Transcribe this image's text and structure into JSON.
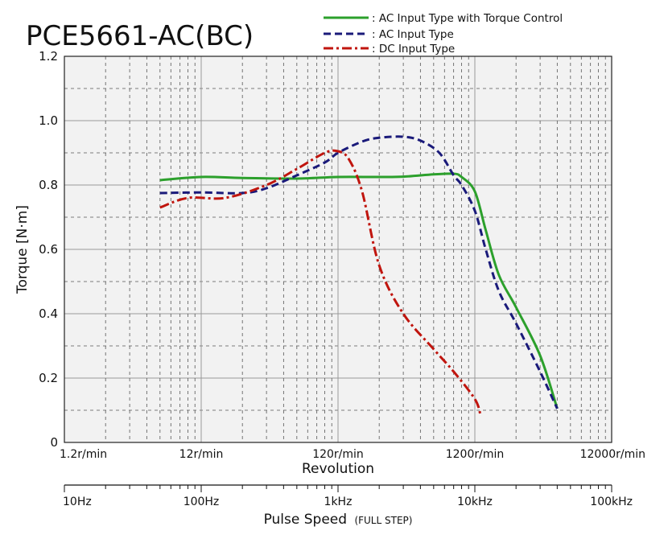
{
  "chart_data": {
    "type": "line",
    "title": "PCE5661-AC(BC)",
    "ylabel": "Torque [N·m]",
    "xlabel": "Revolution",
    "x_scale": "log",
    "x_unit": "Hz",
    "xlim": [
      10,
      100000
    ],
    "ylim": [
      0,
      1.2
    ],
    "grid": true,
    "legend_position": "top",
    "y_ticks": [
      "0",
      "0.2",
      "0.4",
      "0.6",
      "0.8",
      "1.0",
      "1.2"
    ],
    "x_ticks_revolution": [
      "1.2r/min",
      "12r/min",
      "120r/min",
      "1200r/min",
      "12000r/min"
    ],
    "secondary_axis": {
      "label": "Pulse Speed",
      "label_note": "(FULL STEP)",
      "ticks": [
        "10Hz",
        "100Hz",
        "1kHz",
        "10kHz",
        "100kHz"
      ]
    },
    "series": [
      {
        "name": ": AC Input Type with Torque Control",
        "color": "#2ca02c",
        "dash": "solid",
        "x": [
          50,
          100,
          200,
          500,
          1000,
          2000,
          3000,
          5000,
          7000,
          8000,
          10000,
          12000,
          15000,
          20000,
          30000,
          40000
        ],
        "y": [
          0.815,
          0.825,
          0.822,
          0.82,
          0.825,
          0.825,
          0.826,
          0.833,
          0.835,
          0.825,
          0.78,
          0.66,
          0.52,
          0.42,
          0.27,
          0.105
        ]
      },
      {
        "name": ": AC Input Type",
        "color": "#1a1a7a",
        "dash": "dashed",
        "x": [
          50,
          100,
          200,
          300,
          500,
          800,
          1000,
          1500,
          2000,
          3000,
          4000,
          5500,
          7000,
          8000,
          10000,
          12000,
          15000,
          20000,
          30000,
          40000
        ],
        "y": [
          0.775,
          0.777,
          0.775,
          0.79,
          0.83,
          0.87,
          0.9,
          0.935,
          0.947,
          0.95,
          0.938,
          0.9,
          0.83,
          0.8,
          0.72,
          0.6,
          0.47,
          0.37,
          0.22,
          0.105
        ]
      },
      {
        "name": ": DC Input Type",
        "color": "#c0150e",
        "dash": "dashdot",
        "x": [
          50,
          80,
          150,
          300,
          500,
          800,
          1000,
          1200,
          1500,
          2000,
          3000,
          5000,
          7000,
          10000,
          11000
        ],
        "y": [
          0.73,
          0.76,
          0.76,
          0.8,
          0.85,
          0.9,
          0.905,
          0.88,
          0.78,
          0.55,
          0.4,
          0.29,
          0.22,
          0.135,
          0.085
        ]
      }
    ]
  }
}
